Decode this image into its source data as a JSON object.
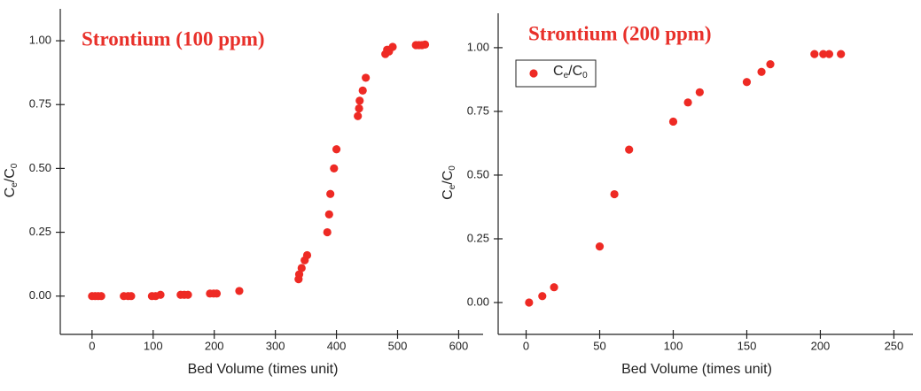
{
  "chart_data": [
    {
      "type": "scatter",
      "title": "Strontium (100 ppm)",
      "x_label": "Bed Volume (times unit)",
      "y_label": [
        "C",
        "e",
        "/C",
        "0"
      ],
      "series": [
        {
          "color": "#ee2a24",
          "x": [
            0,
            5,
            10,
            15,
            52,
            59,
            64,
            98,
            104,
            112,
            145,
            151,
            157,
            193,
            199,
            204,
            241,
            338,
            339,
            343,
            348,
            352,
            385,
            388,
            390,
            396,
            400,
            435,
            437,
            438,
            443,
            448,
            480,
            483,
            486,
            492,
            530,
            535,
            540,
            545
          ],
          "values": [
            0,
            0,
            0,
            0,
            0,
            0,
            0,
            0,
            0,
            0.005,
            0.005,
            0.005,
            0.005,
            0.01,
            0.01,
            0.01,
            0.02,
            0.066,
            0.085,
            0.11,
            0.14,
            0.16,
            0.25,
            0.32,
            0.4,
            0.5,
            0.575,
            0.705,
            0.735,
            0.765,
            0.805,
            0.855,
            0.948,
            0.965,
            0.958,
            0.976,
            0.983,
            0.983,
            0.983,
            0.985
          ]
        }
      ],
      "xlim": [
        -52,
        640
      ],
      "ylim": [
        -0.15,
        1.125
      ],
      "xticks": [
        0,
        100,
        200,
        300,
        400,
        500,
        600
      ],
      "yticks": [
        {
          "value": 0,
          "label": "0.00"
        },
        {
          "value": 0.25,
          "label": "0.25"
        },
        {
          "value": 0.5,
          "label": "0.50"
        },
        {
          "value": 0.75,
          "label": "0.75"
        },
        {
          "value": 1,
          "label": "1.00"
        }
      ]
    },
    {
      "type": "scatter",
      "title": "Strontium (200 ppm)",
      "x_label": "Bed Volume (times unit)",
      "y_label": [
        "C",
        "e",
        "/C",
        "0"
      ],
      "series": [
        {
          "name": [
            "C",
            "e",
            "/C",
            "0"
          ],
          "color": "#ee2a24",
          "x": [
            2,
            11,
            19,
            50,
            60,
            70,
            100,
            110,
            118,
            150,
            160,
            166,
            196,
            202,
            206,
            214
          ],
          "values": [
            0,
            0.025,
            0.06,
            0.22,
            0.425,
            0.6,
            0.71,
            0.785,
            0.825,
            0.865,
            0.905,
            0.935,
            0.975,
            0.975,
            0.975,
            0.975
          ]
        }
      ],
      "xlim": [
        -19,
        263
      ],
      "ylim": [
        -0.125,
        1.135
      ],
      "xticks": [
        0,
        50,
        100,
        150,
        200,
        250
      ],
      "yticks": [
        {
          "value": 0,
          "label": "0.00"
        },
        {
          "value": 0.25,
          "label": "0.25"
        },
        {
          "value": 0.5,
          "label": "0.50"
        },
        {
          "value": 0.75,
          "label": "0.75"
        },
        {
          "value": 1,
          "label": "1.00"
        }
      ],
      "legend": "upper left"
    }
  ]
}
